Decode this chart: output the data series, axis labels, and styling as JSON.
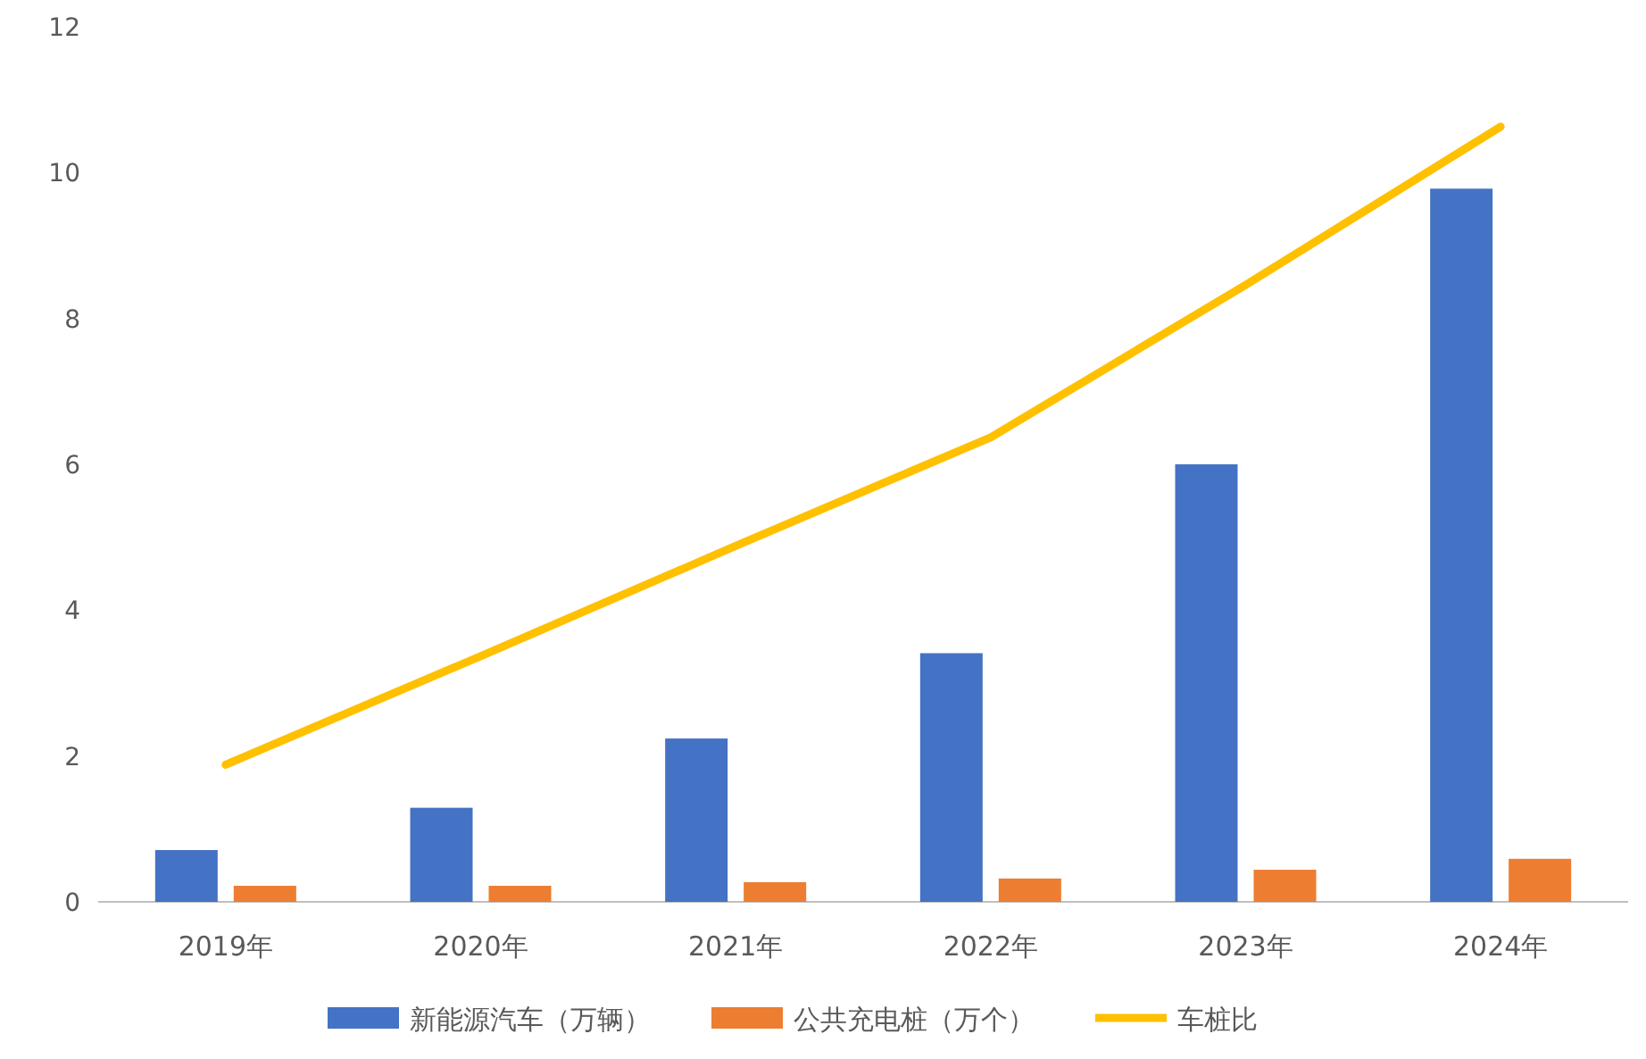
{
  "chart_data": {
    "type": "bar",
    "categories": [
      "2019年",
      "2020年",
      "2021年",
      "2022年",
      "2023年",
      "2024年"
    ],
    "series": [
      {
        "name": "新能源汽车（万辆）",
        "color": "#4472c4",
        "values": [
          0.71,
          1.29,
          2.24,
          3.41,
          6.0,
          9.78
        ]
      },
      {
        "name": "公共充电桩（万个）",
        "color": "#ed7d31",
        "values": [
          0.22,
          0.22,
          0.27,
          0.32,
          0.44,
          0.59
        ]
      },
      {
        "name": "车桩比",
        "type": "line",
        "color": "#ffc000",
        "values": [
          1.88,
          3.37,
          4.88,
          6.37,
          8.46,
          10.63
        ]
      }
    ],
    "ylim": [
      0,
      12
    ],
    "yticks": [
      0,
      2,
      4,
      6,
      8,
      10,
      12
    ],
    "grid": false,
    "legend": "bottom"
  }
}
